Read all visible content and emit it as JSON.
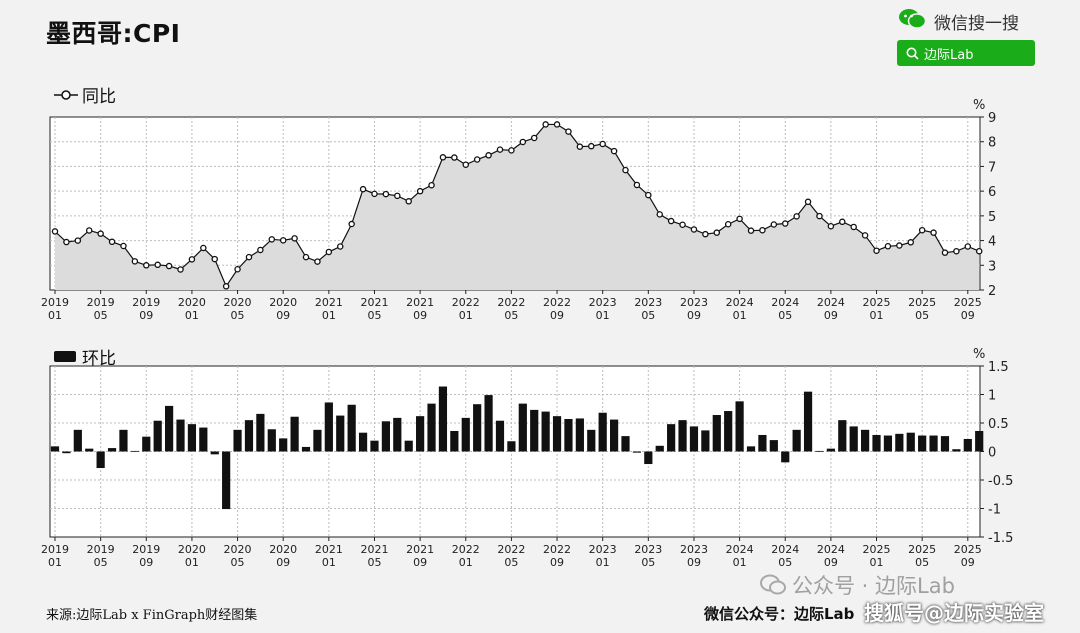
{
  "header": {
    "title": "墨西哥:CPI"
  },
  "brand": {
    "wechat_text": "微信搜一搜",
    "search_label": "边际Lab",
    "accent": "#1aad19"
  },
  "footer": {
    "source": "来源:边际Lab x FinGraph财经图集",
    "right_text": "微信公众号：边际Lab",
    "watermark_text": "公众号 · 边际Lab",
    "watermark_text2": "搜狐号@边际实验室"
  },
  "chart_data": [
    {
      "type": "line",
      "legend": "同比",
      "unit": "%",
      "ylim": [
        2,
        9
      ],
      "y_ticks": [
        "9",
        "8",
        "7",
        "6",
        "5",
        "4",
        "3",
        "2"
      ],
      "x_tick_labels": [
        [
          "2019",
          "01"
        ],
        [
          "2019",
          "05"
        ],
        [
          "2019",
          "09"
        ],
        [
          "2020",
          "01"
        ],
        [
          "2020",
          "05"
        ],
        [
          "2020",
          "09"
        ],
        [
          "2021",
          "01"
        ],
        [
          "2021",
          "05"
        ],
        [
          "2021",
          "09"
        ],
        [
          "2022",
          "01"
        ],
        [
          "2022",
          "05"
        ],
        [
          "2022",
          "09"
        ],
        [
          "2023",
          "01"
        ],
        [
          "2023",
          "05"
        ],
        [
          "2023",
          "09"
        ],
        [
          "2024",
          "01"
        ],
        [
          "2024",
          "05"
        ],
        [
          "2024",
          "09"
        ],
        [
          "2025",
          "01"
        ],
        [
          "2025",
          "05"
        ],
        [
          "2025",
          "09"
        ]
      ],
      "start": "2019-01",
      "end": "2025-09",
      "grid": true,
      "color": "#111111",
      "fill": "#dcdcdc",
      "values": [
        4.37,
        3.94,
        4.0,
        4.41,
        4.28,
        3.95,
        3.78,
        3.16,
        3.0,
        3.02,
        2.97,
        2.83,
        3.24,
        3.7,
        3.25,
        2.15,
        2.84,
        3.33,
        3.62,
        4.05,
        4.01,
        4.09,
        3.33,
        3.15,
        3.54,
        3.76,
        4.67,
        6.08,
        5.89,
        5.88,
        5.81,
        5.59,
        6.0,
        6.24,
        7.37,
        7.36,
        7.07,
        7.28,
        7.45,
        7.68,
        7.65,
        7.99,
        8.15,
        8.7,
        8.7,
        8.41,
        7.8,
        7.82,
        7.91,
        7.62,
        6.85,
        6.25,
        5.84,
        5.06,
        4.79,
        4.64,
        4.45,
        4.26,
        4.32,
        4.66,
        4.88,
        4.4,
        4.42,
        4.65,
        4.69,
        4.98,
        5.57,
        4.99,
        4.58,
        4.76,
        4.55,
        4.21,
        3.59,
        3.77,
        3.8,
        3.93,
        4.42,
        4.32,
        3.51,
        3.57,
        3.76,
        3.57
      ]
    },
    {
      "type": "bar",
      "legend": "环比",
      "unit": "%",
      "ylim": [
        -1.5,
        1.5
      ],
      "y_ticks": [
        "1.5",
        "1",
        "0.5",
        "0",
        "-0.5",
        "-1",
        "-1.5"
      ],
      "x_tick_labels": [
        [
          "2019",
          "01"
        ],
        [
          "2019",
          "05"
        ],
        [
          "2019",
          "09"
        ],
        [
          "2020",
          "01"
        ],
        [
          "2020",
          "05"
        ],
        [
          "2020",
          "09"
        ],
        [
          "2021",
          "01"
        ],
        [
          "2021",
          "05"
        ],
        [
          "2021",
          "09"
        ],
        [
          "2022",
          "01"
        ],
        [
          "2022",
          "05"
        ],
        [
          "2022",
          "09"
        ],
        [
          "2023",
          "01"
        ],
        [
          "2023",
          "05"
        ],
        [
          "2023",
          "09"
        ],
        [
          "2024",
          "01"
        ],
        [
          "2024",
          "05"
        ],
        [
          "2024",
          "09"
        ],
        [
          "2025",
          "01"
        ],
        [
          "2025",
          "05"
        ],
        [
          "2025",
          "09"
        ]
      ],
      "start": "2019-01",
      "end": "2025-09",
      "grid": true,
      "color": "#111111",
      "values": [
        0.09,
        -0.03,
        0.38,
        0.05,
        -0.29,
        0.06,
        0.38,
        0.01,
        0.26,
        0.54,
        0.8,
        0.56,
        0.48,
        0.42,
        -0.05,
        -1.01,
        0.38,
        0.55,
        0.66,
        0.39,
        0.23,
        0.61,
        0.08,
        0.38,
        0.86,
        0.63,
        0.82,
        0.33,
        0.19,
        0.53,
        0.59,
        0.19,
        0.62,
        0.84,
        1.14,
        0.36,
        0.59,
        0.83,
        0.99,
        0.54,
        0.18,
        0.84,
        0.73,
        0.7,
        0.62,
        0.57,
        0.58,
        0.38,
        0.68,
        0.56,
        0.27,
        -0.02,
        -0.22,
        0.1,
        0.48,
        0.55,
        0.44,
        0.37,
        0.64,
        0.71,
        0.88,
        0.09,
        0.29,
        0.2,
        -0.19,
        0.38,
        1.05,
        0.01,
        0.05,
        0.55,
        0.44,
        0.38,
        0.29,
        0.28,
        0.31,
        0.33,
        0.28,
        0.28,
        0.27,
        0.04,
        0.22,
        0.36
      ]
    }
  ]
}
